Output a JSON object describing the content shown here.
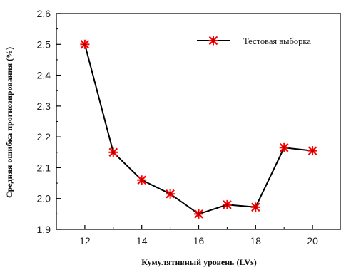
{
  "chart_data": {
    "type": "line",
    "title": "",
    "xlabel": "Кумулятивный уровень (LVs)",
    "ylabel": "Средняя ошибка прогнозирования (%)",
    "x": [
      12,
      13,
      14,
      15,
      16,
      17,
      18,
      19,
      20
    ],
    "series": [
      {
        "name": "Тестовая выборка",
        "values": [
          2.5,
          2.15,
          2.06,
          2.015,
          1.95,
          1.98,
          1.972,
          2.165,
          2.155
        ],
        "color": "#000000",
        "marker_color": "#ff0000",
        "marker": "star"
      }
    ],
    "xlim": [
      11,
      21
    ],
    "ylim": [
      1.9,
      2.6
    ],
    "xticks": [
      "12",
      "14",
      "16",
      "18",
      "20"
    ],
    "yticks": [
      "1.9",
      "2.0",
      "2.1",
      "2.2",
      "2.3",
      "2.4",
      "2.5",
      "2.6"
    ],
    "grid": false,
    "legend_position": "top-right"
  }
}
